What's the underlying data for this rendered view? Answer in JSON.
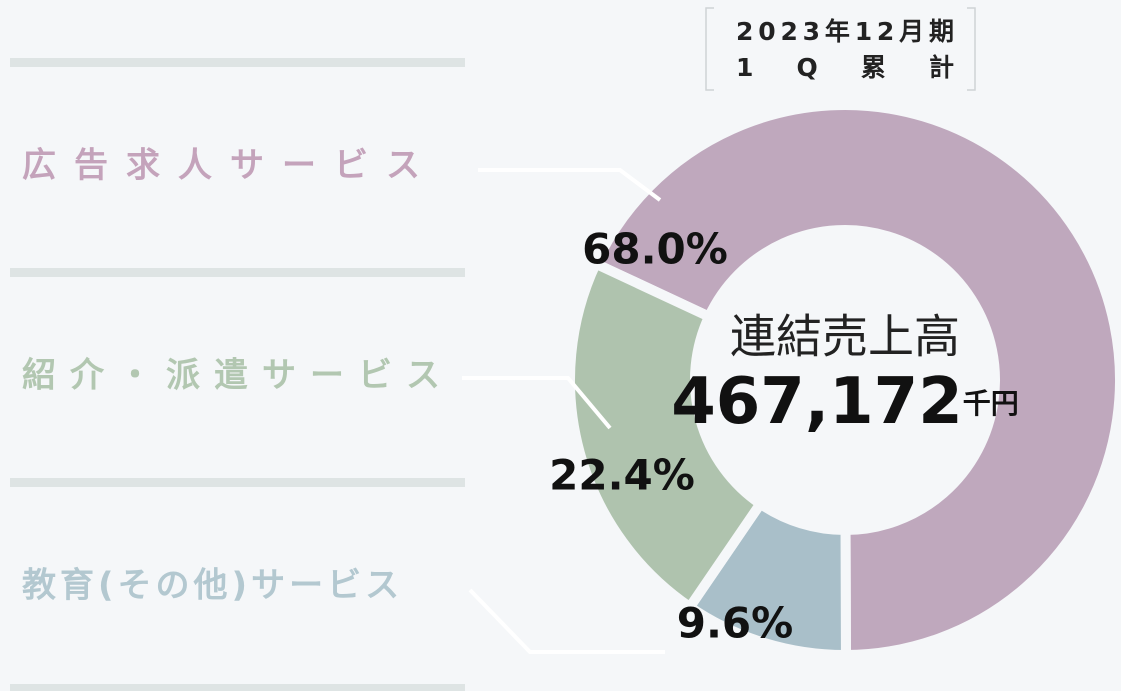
{
  "chart_data": {
    "type": "pie",
    "donut": true,
    "period": "2023年12月期",
    "period_sub": "1Q累計",
    "center_title": "連結売上高",
    "center_value": "467,172",
    "center_unit": "千円",
    "categories": [
      "広告求人サービス",
      "教育(その他)サービス",
      "紹介・派遣サービス"
    ],
    "values": [
      68.0,
      9.6,
      22.4
    ],
    "value_labels": [
      "68.0%",
      "9.6%",
      "22.4%"
    ],
    "colors": [
      "#bfa8bd",
      "#a9bfc9",
      "#afc3ae"
    ],
    "label_colors": [
      "#c4a3bb",
      "#b3c8d0",
      "#b2c7b1"
    ]
  }
}
